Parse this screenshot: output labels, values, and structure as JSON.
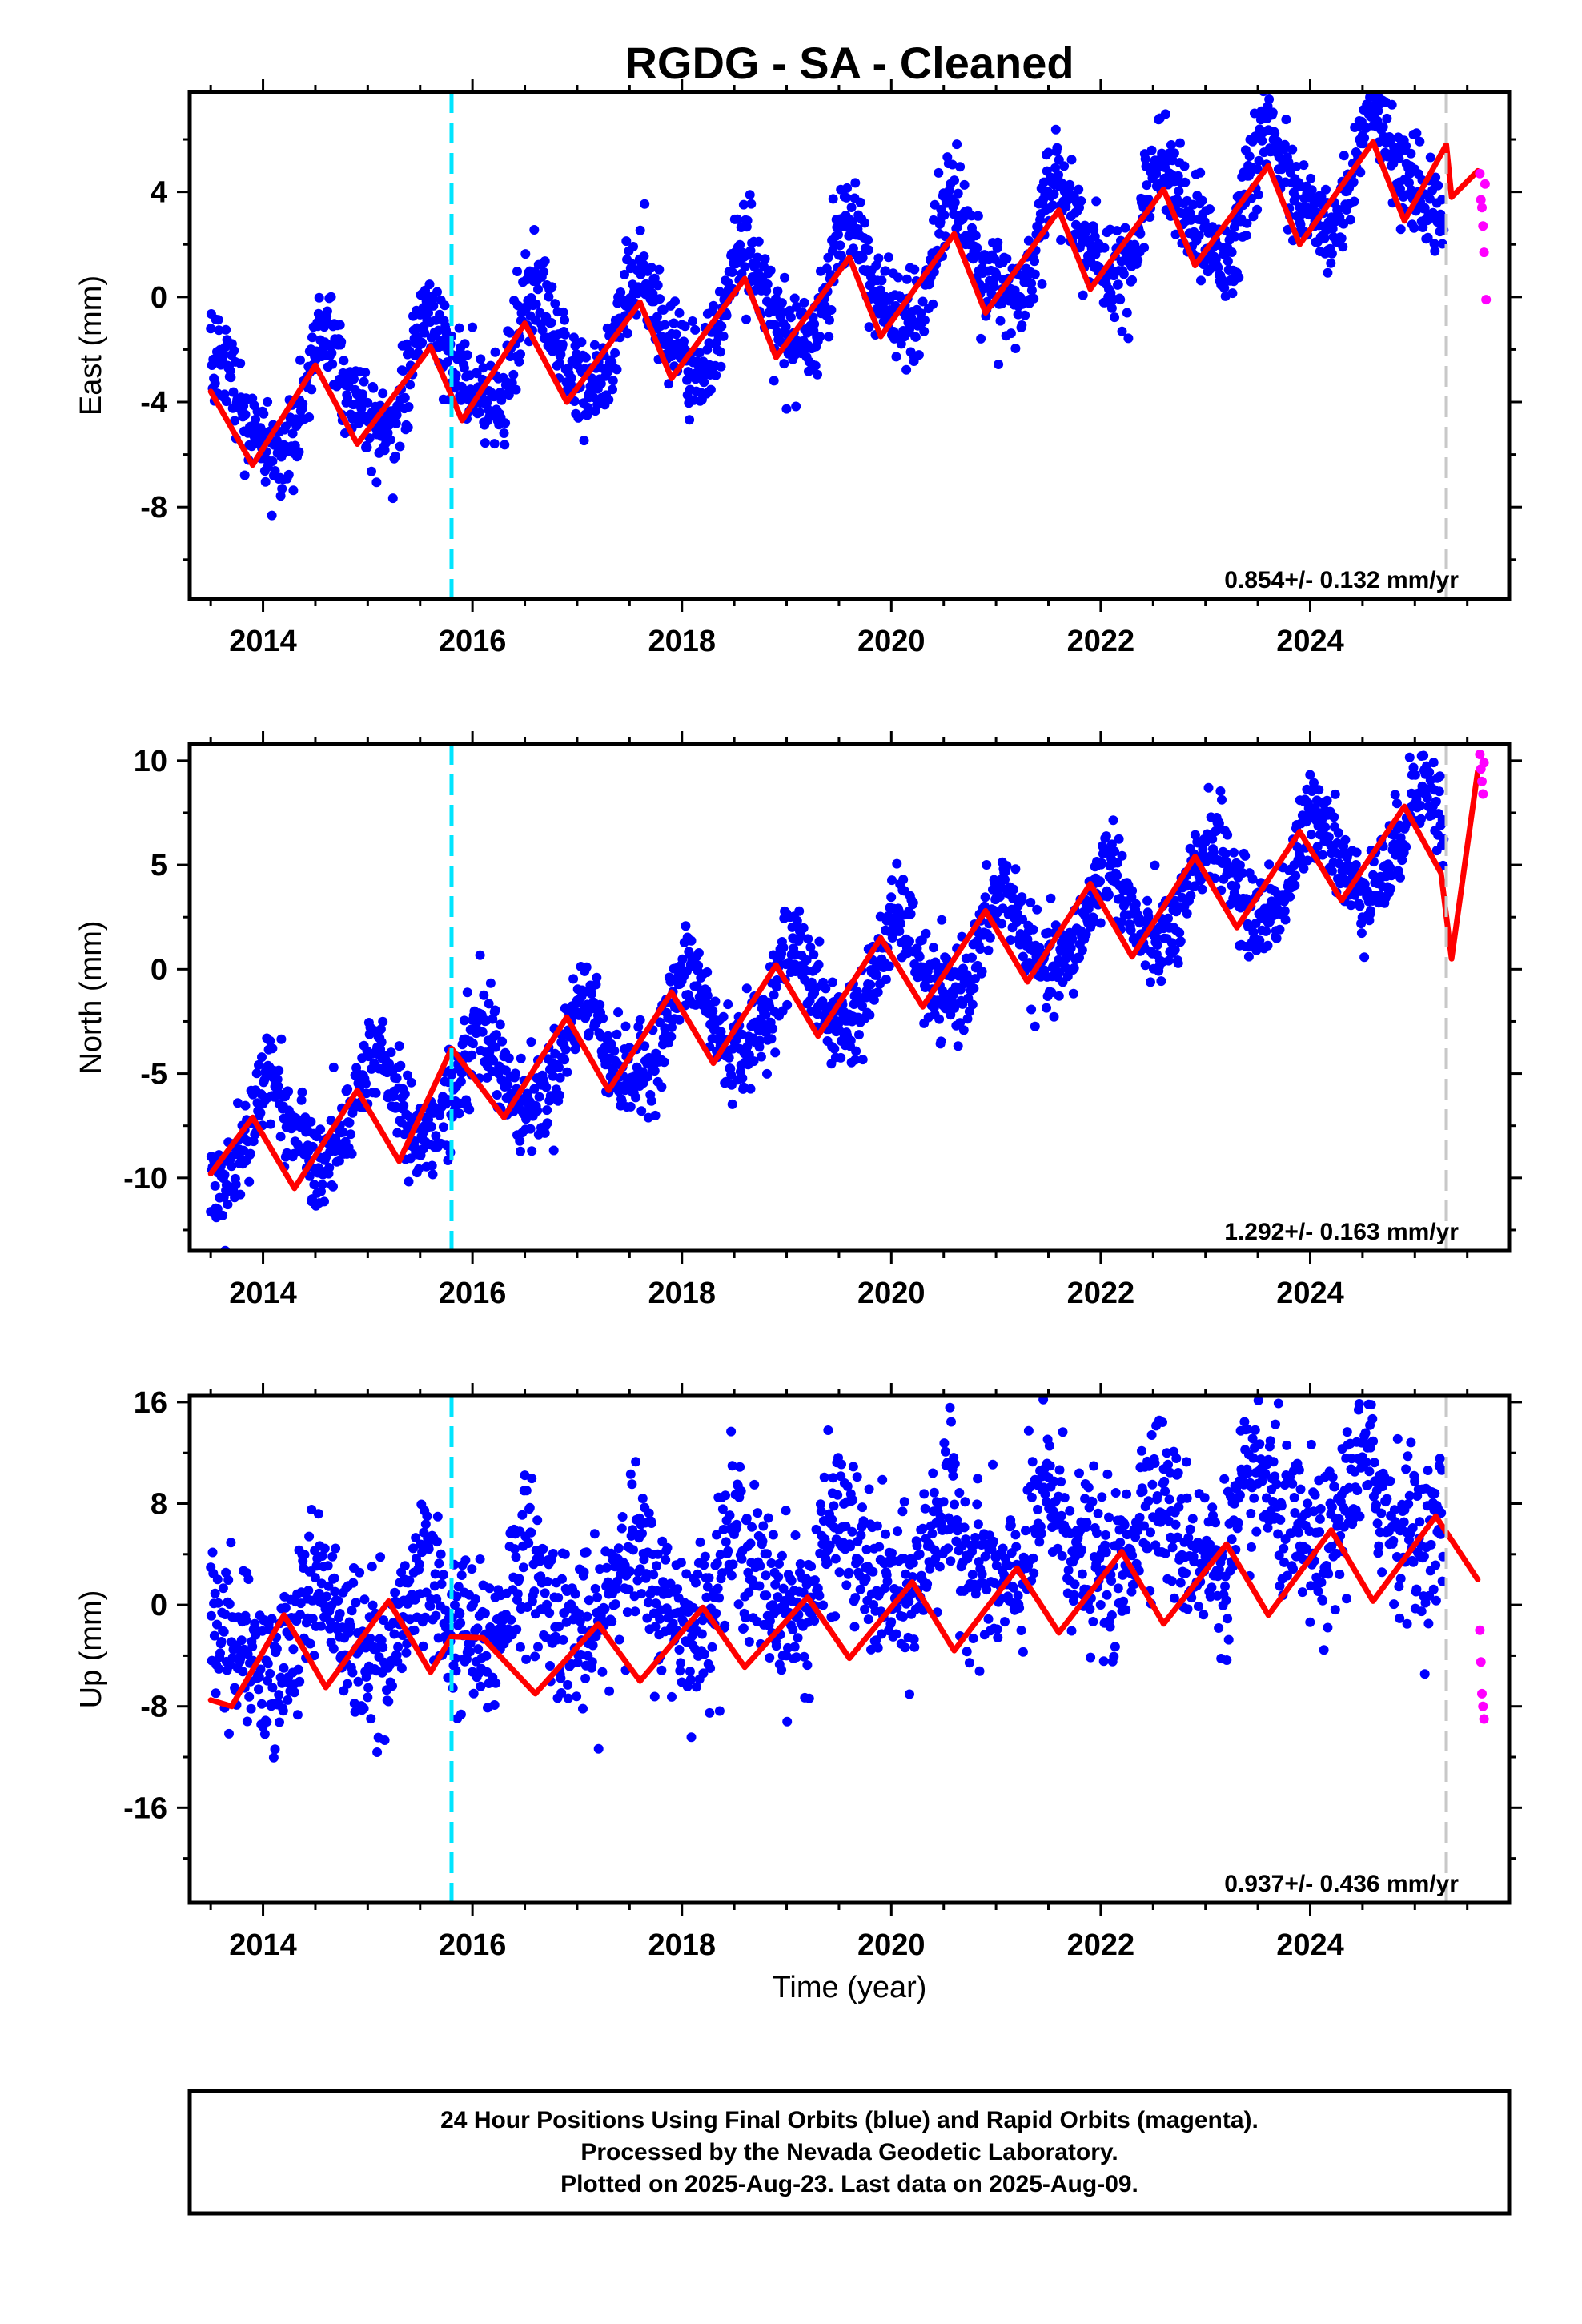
{
  "chart_data": {
    "type": "scatter",
    "title": "RGDG  - SA - Cleaned",
    "xlabel": "Time (year)",
    "xlim": [
      2013.3,
      2025.9
    ],
    "x_ticks": [
      2014,
      2016,
      2018,
      2020,
      2022,
      2024
    ],
    "x_tick_labels": [
      "2014",
      "2016",
      "2018",
      "2020",
      "2022",
      "2024"
    ],
    "event_lines": {
      "cyan_dashed": 2015.8,
      "gray_dashed": 2025.3
    },
    "legend": "none",
    "grid": false,
    "colors": {
      "final_orbits": "#0000ff",
      "rapid_orbits": "#ff00ff",
      "model_fit": "#ff0000",
      "event_line": "#00e5ff",
      "last_final_line": "#c8c8c8"
    },
    "panels": [
      {
        "component": "East",
        "ylabel": "East (mm)",
        "ylim": [
          -11.5,
          7.8
        ],
        "y_ticks": [
          -8,
          -4,
          0,
          4
        ],
        "y_tick_labels": [
          "-8",
          "-4",
          "0",
          "4"
        ],
        "rate": "0.854+/- 0.132 mm/yr",
        "seasonal": {
          "trend_start": -4.8,
          "rate": 0.854,
          "annual_amp": 2.0,
          "annual_phase": 4.0,
          "semi_amp": 0.5,
          "semi_phase": 1.0,
          "noise": 0.85
        },
        "model_fit": {
          "x": [
            2013.5,
            2013.9,
            2014.5,
            2014.9,
            2015.6,
            2015.9,
            2016.5,
            2016.9,
            2017.6,
            2017.9,
            2018.6,
            2018.9,
            2019.6,
            2019.9,
            2020.6,
            2020.9,
            2021.6,
            2021.9,
            2022.6,
            2022.9,
            2023.6,
            2023.9,
            2024.6,
            2024.9,
            2025.3,
            2025.35,
            2025.6
          ],
          "y": [
            -3.6,
            -6.4,
            -2.6,
            -5.6,
            -1.9,
            -4.7,
            -1.0,
            -4.0,
            -0.2,
            -3.1,
            0.7,
            -2.3,
            1.5,
            -1.5,
            2.4,
            -0.6,
            3.3,
            0.3,
            4.1,
            1.2,
            5.0,
            2.0,
            5.9,
            2.9,
            5.8,
            3.8,
            4.8
          ]
        },
        "rapid_orbits": {
          "x": [
            2025.62,
            2025.63,
            2025.64,
            2025.65,
            2025.66,
            2025.67,
            2025.68
          ],
          "y": [
            4.7,
            3.7,
            3.4,
            2.7,
            1.7,
            4.3,
            -0.1
          ]
        }
      },
      {
        "component": "North",
        "ylabel": "North (mm)",
        "ylim": [
          -13.5,
          10.8
        ],
        "y_ticks": [
          -10,
          -5,
          0,
          5,
          10
        ],
        "y_tick_labels": [
          "-10",
          "-5",
          "0",
          "5",
          "10"
        ],
        "rate": "1.292+/- 0.163 mm/yr",
        "seasonal": {
          "trend_start": -8.6,
          "rate": 1.292,
          "annual_amp": 2.2,
          "annual_phase": 1.2,
          "semi_amp": 0.4,
          "semi_phase": 0.6,
          "noise": 1.05
        },
        "model_fit": {
          "x": [
            2013.5,
            2013.9,
            2014.3,
            2014.9,
            2015.3,
            2015.8,
            2016.3,
            2016.9,
            2017.3,
            2017.9,
            2018.3,
            2018.9,
            2019.3,
            2019.9,
            2020.3,
            2020.9,
            2021.3,
            2021.9,
            2022.3,
            2022.9,
            2023.3,
            2023.9,
            2024.3,
            2024.9,
            2025.25,
            2025.35,
            2025.6
          ],
          "y": [
            -9.8,
            -7.1,
            -10.5,
            -5.8,
            -9.2,
            -3.8,
            -7.1,
            -2.3,
            -5.8,
            -1.1,
            -4.5,
            0.2,
            -3.2,
            1.5,
            -1.8,
            2.8,
            -0.6,
            4.1,
            0.6,
            5.4,
            2.0,
            6.6,
            3.3,
            7.8,
            4.6,
            0.5,
            9.5
          ]
        },
        "rapid_orbits": {
          "x": [
            2025.62,
            2025.63,
            2025.64,
            2025.65,
            2025.66
          ],
          "y": [
            10.3,
            9.6,
            9.0,
            8.4,
            9.9
          ]
        }
      },
      {
        "component": "Up",
        "ylabel": "Up (mm)",
        "ylim": [
          -23.5,
          16.5
        ],
        "y_ticks": [
          -16,
          -8,
          0,
          8,
          16
        ],
        "y_tick_labels": [
          "-16",
          "-8",
          "0",
          "8",
          "16"
        ],
        "rate": "0.937+/- 0.436 mm/yr",
        "seasonal": {
          "trend_start": -3.0,
          "rate": 0.937,
          "annual_amp": 3.2,
          "annual_phase": 4.5,
          "semi_amp": 1.0,
          "semi_phase": 2.0,
          "noise": 3.1
        },
        "model_fit": {
          "x": [
            2013.5,
            2013.7,
            2014.2,
            2014.6,
            2015.2,
            2015.6,
            2015.8,
            2016.1,
            2016.6,
            2017.2,
            2017.6,
            2018.2,
            2018.6,
            2019.2,
            2019.6,
            2020.2,
            2020.6,
            2021.2,
            2021.6,
            2022.2,
            2022.6,
            2023.2,
            2023.6,
            2024.2,
            2024.6,
            2025.2,
            2025.6
          ],
          "y": [
            -7.5,
            -8.0,
            -0.8,
            -6.5,
            0.3,
            -5.3,
            -2.5,
            -2.6,
            -7.0,
            -1.5,
            -6.0,
            -0.2,
            -4.9,
            0.6,
            -4.2,
            1.8,
            -3.6,
            2.9,
            -2.2,
            4.2,
            -1.5,
            4.8,
            -0.8,
            5.9,
            0.3,
            7.0,
            2.0
          ]
        },
        "rapid_orbits": {
          "x": [
            2025.62,
            2025.63,
            2025.64,
            2025.65,
            2025.66
          ],
          "y": [
            -2.0,
            -4.5,
            -7.0,
            -8.0,
            -9.0
          ]
        }
      }
    ]
  },
  "footer": {
    "line1": "24 Hour Positions Using Final Orbits (blue) and Rapid Orbits (magenta).",
    "line2": "Processed by the Nevada Geodetic Laboratory.",
    "line3": "Plotted on 2025-Aug-23. Last data on 2025-Aug-09."
  }
}
